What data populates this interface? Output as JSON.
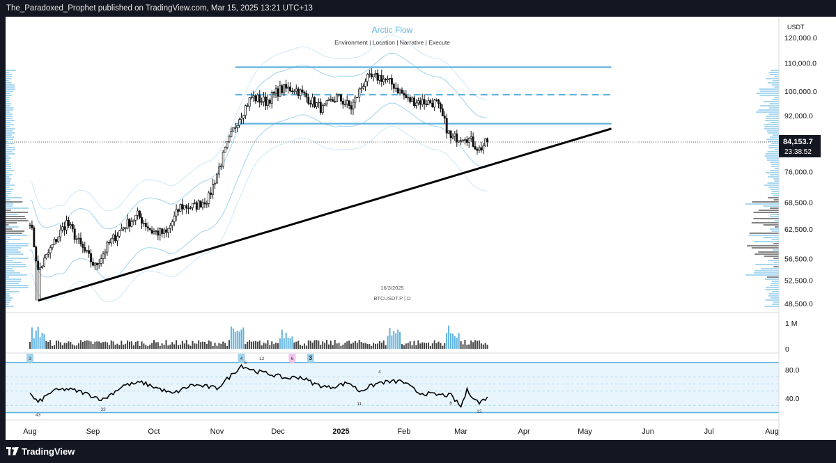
{
  "header": {
    "published_line": "The_Paradoxed_Prophet published on TradingView.com, Mar 15, 2025 13:21 UTC+13"
  },
  "footer": {
    "brand": "TradingView",
    "logo_icon": "tradingview-logo-icon"
  },
  "chart_data": {
    "type": "candlestick",
    "title": "Arctic Flow",
    "subtitle": "Environment | Location | Narrative | Execute",
    "watermark_date": "16/3/2025",
    "symbol_line": "BTCUSDT.P | D",
    "currency": "USDT",
    "price_ticks": [
      "120,000.0",
      "110,000.0",
      "100,000.0",
      "92,000.0",
      "76,000.0",
      "68,500.0",
      "62,500.0",
      "56,500.0",
      "52,500.0",
      "48,500.0"
    ],
    "price_tick_values": [
      120000,
      110000,
      100000,
      92000,
      76000,
      68500,
      62500,
      56500,
      52500,
      48500
    ],
    "last_price": "84,153.7",
    "last_price_value": 84153.7,
    "countdown": "23:38:52",
    "x_labels": [
      "Aug",
      "Sep",
      "Oct",
      "Nov",
      "Dec",
      "2025",
      "Feb",
      "Mar",
      "Apr",
      "May",
      "Jun",
      "Jul",
      "Aug"
    ],
    "price_series_weekly_close": [
      {
        "date": "2024-08-01",
        "close": 64500
      },
      {
        "date": "2024-08-05",
        "close": 54000
      },
      {
        "date": "2024-08-12",
        "close": 59000
      },
      {
        "date": "2024-08-19",
        "close": 64000
      },
      {
        "date": "2024-08-26",
        "close": 59000
      },
      {
        "date": "2024-09-02",
        "close": 55000
      },
      {
        "date": "2024-09-09",
        "close": 59500
      },
      {
        "date": "2024-09-16",
        "close": 63000
      },
      {
        "date": "2024-09-23",
        "close": 65500
      },
      {
        "date": "2024-09-30",
        "close": 62000
      },
      {
        "date": "2024-10-07",
        "close": 61500
      },
      {
        "date": "2024-10-14",
        "close": 67500
      },
      {
        "date": "2024-10-21",
        "close": 67500
      },
      {
        "date": "2024-10-28",
        "close": 69500
      },
      {
        "date": "2024-11-04",
        "close": 80000
      },
      {
        "date": "2024-11-11",
        "close": 90500
      },
      {
        "date": "2024-11-18",
        "close": 98000
      },
      {
        "date": "2024-11-25",
        "close": 96500
      },
      {
        "date": "2024-12-02",
        "close": 100500
      },
      {
        "date": "2024-12-09",
        "close": 101000
      },
      {
        "date": "2024-12-16",
        "close": 97500
      },
      {
        "date": "2024-12-23",
        "close": 94000
      },
      {
        "date": "2024-12-30",
        "close": 98000
      },
      {
        "date": "2025-01-06",
        "close": 94500
      },
      {
        "date": "2025-01-13",
        "close": 104000
      },
      {
        "date": "2025-01-20",
        "close": 105000
      },
      {
        "date": "2025-01-27",
        "close": 102000
      },
      {
        "date": "2025-02-03",
        "close": 97000
      },
      {
        "date": "2025-02-10",
        "close": 96500
      },
      {
        "date": "2025-02-17",
        "close": 96000
      },
      {
        "date": "2025-02-24",
        "close": 85000
      },
      {
        "date": "2025-03-03",
        "close": 86000
      },
      {
        "date": "2025-03-10",
        "close": 82000
      },
      {
        "date": "2025-03-14",
        "close": 84150
      }
    ],
    "range_levels": [
      {
        "name": "range-high",
        "value": 108500,
        "style": "solid"
      },
      {
        "name": "range-mid",
        "value": 98800,
        "style": "dashed"
      },
      {
        "name": "range-low",
        "value": 89500,
        "style": "solid"
      }
    ],
    "trendline": {
      "from": {
        "date": "2024-08-05",
        "value": 49000
      },
      "to": {
        "date": "2025-05-14",
        "value": 88000
      }
    },
    "volume": {
      "ticks": [
        "1 M",
        "0"
      ],
      "tick_values": [
        1000000,
        0
      ],
      "spike_dates": [
        "2024-08-05",
        "2024-11-11",
        "2024-12-05",
        "2025-01-27",
        "2025-02-25"
      ]
    },
    "oscillator": {
      "ticks": [
        "80.0",
        "40.0"
      ],
      "tick_values": [
        80,
        40
      ],
      "band": [
        30,
        70
      ],
      "marker_labels": [
        "3",
        "4",
        "5",
        "12",
        "6",
        "3"
      ],
      "value_labels": [
        "43",
        "33",
        "4",
        "11",
        "8",
        "12"
      ],
      "series": [
        {
          "date": "2024-08-01",
          "value": 46
        },
        {
          "date": "2024-08-05",
          "value": 34
        },
        {
          "date": "2024-08-12",
          "value": 50
        },
        {
          "date": "2024-08-19",
          "value": 53
        },
        {
          "date": "2024-08-26",
          "value": 49
        },
        {
          "date": "2024-09-06",
          "value": 38
        },
        {
          "date": "2024-09-16",
          "value": 58
        },
        {
          "date": "2024-09-25",
          "value": 62
        },
        {
          "date": "2024-10-03",
          "value": 54
        },
        {
          "date": "2024-10-10",
          "value": 46
        },
        {
          "date": "2024-10-20",
          "value": 59
        },
        {
          "date": "2024-11-01",
          "value": 54
        },
        {
          "date": "2024-11-08",
          "value": 72
        },
        {
          "date": "2024-11-13",
          "value": 86
        },
        {
          "date": "2024-11-20",
          "value": 78
        },
        {
          "date": "2024-11-27",
          "value": 74
        },
        {
          "date": "2024-12-05",
          "value": 68
        },
        {
          "date": "2024-12-12",
          "value": 70
        },
        {
          "date": "2024-12-19",
          "value": 60
        },
        {
          "date": "2024-12-26",
          "value": 55
        },
        {
          "date": "2025-01-05",
          "value": 62
        },
        {
          "date": "2025-01-10",
          "value": 50
        },
        {
          "date": "2025-01-20",
          "value": 62
        },
        {
          "date": "2025-01-31",
          "value": 64
        },
        {
          "date": "2025-02-08",
          "value": 48
        },
        {
          "date": "2025-02-16",
          "value": 45
        },
        {
          "date": "2025-02-24",
          "value": 44
        },
        {
          "date": "2025-03-01",
          "value": 28
        },
        {
          "date": "2025-03-04",
          "value": 51
        },
        {
          "date": "2025-03-10",
          "value": 33
        },
        {
          "date": "2025-03-14",
          "value": 42
        }
      ]
    }
  }
}
